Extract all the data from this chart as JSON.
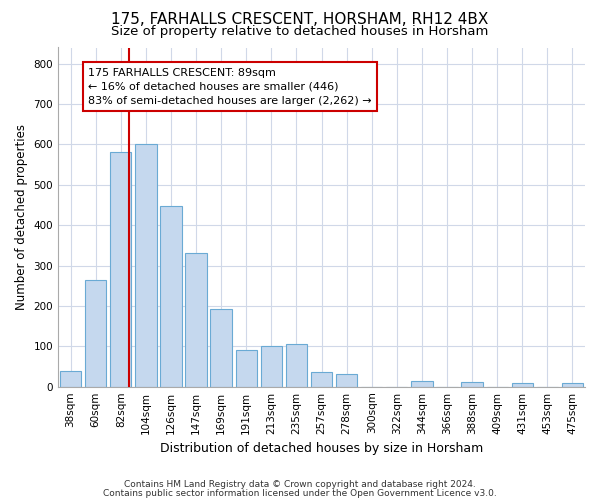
{
  "title": "175, FARHALLS CRESCENT, HORSHAM, RH12 4BX",
  "subtitle": "Size of property relative to detached houses in Horsham",
  "xlabel": "Distribution of detached houses by size in Horsham",
  "ylabel": "Number of detached properties",
  "categories": [
    "38sqm",
    "60sqm",
    "82sqm",
    "104sqm",
    "126sqm",
    "147sqm",
    "169sqm",
    "191sqm",
    "213sqm",
    "235sqm",
    "257sqm",
    "278sqm",
    "300sqm",
    "322sqm",
    "344sqm",
    "366sqm",
    "388sqm",
    "409sqm",
    "431sqm",
    "453sqm",
    "475sqm"
  ],
  "values": [
    40,
    263,
    580,
    600,
    448,
    330,
    193,
    90,
    100,
    105,
    37,
    32,
    0,
    0,
    15,
    0,
    12,
    0,
    8,
    0,
    8
  ],
  "bar_color": "#c5d8ee",
  "bar_edge_color": "#6aaad4",
  "vline_color": "#cc0000",
  "vline_x_index": 2.32,
  "annotation_text_line1": "175 FARHALLS CRESCENT: 89sqm",
  "annotation_text_line2": "← 16% of detached houses are smaller (446)",
  "annotation_text_line3": "83% of semi-detached houses are larger (2,262) →",
  "annotation_box_facecolor": "#ffffff",
  "annotation_box_edgecolor": "#cc0000",
  "ylim": [
    0,
    840
  ],
  "yticks": [
    0,
    100,
    200,
    300,
    400,
    500,
    600,
    700,
    800
  ],
  "bg_color": "#ffffff",
  "plot_bg_color": "#ffffff",
  "grid_color": "#d0d8e8",
  "footer_line1": "Contains HM Land Registry data © Crown copyright and database right 2024.",
  "footer_line2": "Contains public sector information licensed under the Open Government Licence v3.0.",
  "title_fontsize": 11,
  "subtitle_fontsize": 9.5,
  "xlabel_fontsize": 9,
  "ylabel_fontsize": 8.5,
  "tick_fontsize": 7.5,
  "annotation_fontsize": 8,
  "footer_fontsize": 6.5
}
